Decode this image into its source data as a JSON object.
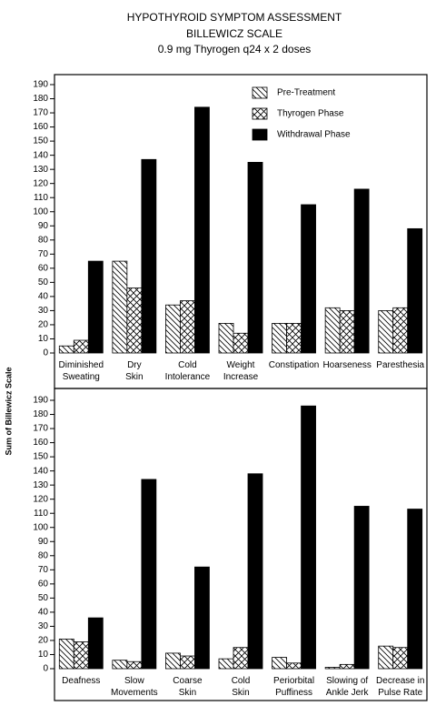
{
  "title": [
    "HYPOTHYROID SYMPTOM ASSESSMENT",
    "BILLEWICZ SCALE",
    "0.9 mg Thyrogen q24 x 2 doses"
  ],
  "ylabel": "Sum of Billewicz Scale",
  "chart_data": [
    {
      "type": "bar",
      "legend": "upper right",
      "categories": [
        "Diminished\nSweating",
        "Dry\nSkin",
        "Cold\nIntolerance",
        "Weight\nIncrease",
        "Constipation",
        "Hoarseness",
        "Paresthesia"
      ],
      "series": [
        {
          "name": "Pre-Treatment",
          "color": "#000000",
          "pattern": "hatch",
          "values": [
            5,
            65,
            34,
            21,
            21,
            32,
            30
          ]
        },
        {
          "name": "Thyrogen Phase",
          "color": "#000000",
          "pattern": "crosshatch",
          "values": [
            9,
            46,
            37,
            14,
            21,
            30,
            32
          ]
        },
        {
          "name": "Withdrawal Phase",
          "color": "#000000",
          "pattern": "solid",
          "values": [
            65,
            137,
            174,
            135,
            105,
            116,
            88
          ]
        }
      ],
      "ylim": [
        0,
        190
      ],
      "yticks": [
        0,
        10,
        20,
        30,
        40,
        50,
        60,
        70,
        80,
        90,
        100,
        110,
        120,
        130,
        140,
        150,
        160,
        170,
        180,
        190
      ]
    },
    {
      "type": "bar",
      "categories": [
        "Deafness",
        "Slow\nMovements",
        "Coarse\nSkin",
        "Cold\nSkin",
        "Periorbital\nPuffiness",
        "Slowing of\nAnkle Jerk",
        "Decrease in\nPulse Rate"
      ],
      "series": [
        {
          "color": "#000000",
          "pattern": "hatch",
          "values": [
            21,
            6,
            11,
            7,
            8,
            1,
            16
          ]
        },
        {
          "color": "#000000",
          "pattern": "crosshatch",
          "values": [
            19,
            5,
            9,
            15,
            4,
            3,
            15
          ]
        },
        {
          "color": "#000000",
          "pattern": "solid",
          "values": [
            36,
            134,
            72,
            138,
            186,
            115,
            113
          ]
        }
      ],
      "ylim": [
        0,
        190
      ],
      "yticks": [
        0,
        10,
        20,
        30,
        40,
        50,
        60,
        70,
        80,
        90,
        100,
        110,
        120,
        130,
        140,
        150,
        160,
        170,
        180,
        190
      ]
    }
  ]
}
